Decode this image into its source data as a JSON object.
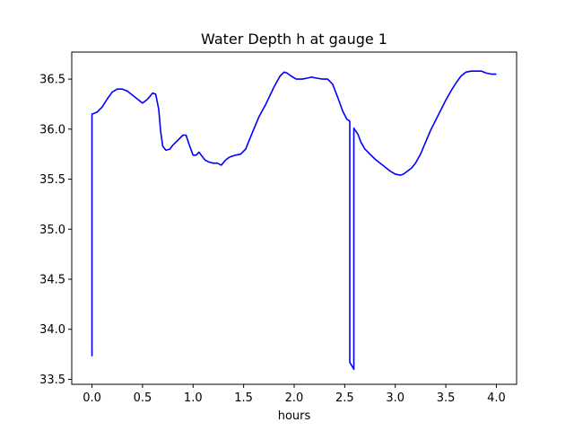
{
  "chart_data": {
    "type": "line",
    "title": "Water Depth h at gauge 1",
    "xlabel": "hours",
    "ylabel": "",
    "xlim": [
      -0.2,
      4.2
    ],
    "ylim": [
      33.45,
      36.77
    ],
    "xticks": [
      0.0,
      0.5,
      1.0,
      1.5,
      2.0,
      2.5,
      3.0,
      3.5,
      4.0
    ],
    "xtick_labels": [
      "0.0",
      "0.5",
      "1.0",
      "1.5",
      "2.0",
      "2.5",
      "3.0",
      "3.5",
      "4.0"
    ],
    "yticks": [
      33.5,
      34.0,
      34.5,
      35.0,
      35.5,
      36.0,
      36.5
    ],
    "ytick_labels": [
      "33.5",
      "34.0",
      "34.5",
      "35.0",
      "35.5",
      "36.0",
      "36.5"
    ],
    "grid": false,
    "series": [
      {
        "color": "#0000ff",
        "x": [
          0.0,
          0.0,
          0.05,
          0.1,
          0.15,
          0.2,
          0.25,
          0.3,
          0.35,
          0.4,
          0.45,
          0.5,
          0.55,
          0.6,
          0.63,
          0.66,
          0.68,
          0.7,
          0.73,
          0.77,
          0.8,
          0.85,
          0.9,
          0.93,
          0.96,
          1.0,
          1.03,
          1.06,
          1.08,
          1.12,
          1.16,
          1.2,
          1.24,
          1.28,
          1.32,
          1.36,
          1.42,
          1.47,
          1.52,
          1.58,
          1.65,
          1.72,
          1.8,
          1.86,
          1.9,
          1.93,
          1.97,
          2.02,
          2.08,
          2.13,
          2.17,
          2.22,
          2.28,
          2.33,
          2.38,
          2.43,
          2.48,
          2.52,
          2.55,
          2.55,
          2.59,
          2.59,
          2.63,
          2.66,
          2.7,
          2.75,
          2.8,
          2.85,
          2.9,
          2.95,
          3.0,
          3.05,
          3.08,
          3.12,
          3.16,
          3.2,
          3.25,
          3.3,
          3.35,
          3.4,
          3.45,
          3.5,
          3.55,
          3.6,
          3.65,
          3.7,
          3.75,
          3.8,
          3.85,
          3.9,
          3.95,
          4.0
        ],
        "y": [
          33.73,
          36.15,
          36.17,
          36.22,
          36.3,
          36.37,
          36.4,
          36.4,
          36.38,
          36.34,
          36.3,
          36.26,
          36.3,
          36.36,
          36.35,
          36.2,
          35.97,
          35.83,
          35.79,
          35.8,
          35.84,
          35.89,
          35.94,
          35.94,
          35.85,
          35.74,
          35.74,
          35.77,
          35.74,
          35.69,
          35.67,
          35.66,
          35.66,
          35.64,
          35.69,
          35.72,
          35.74,
          35.75,
          35.8,
          35.95,
          36.12,
          36.25,
          36.42,
          36.53,
          36.57,
          36.56,
          36.53,
          36.5,
          36.5,
          36.51,
          36.52,
          36.51,
          36.5,
          36.5,
          36.45,
          36.32,
          36.18,
          36.1,
          36.08,
          33.67,
          33.6,
          36.01,
          35.95,
          35.87,
          35.8,
          35.75,
          35.7,
          35.66,
          35.62,
          35.58,
          35.55,
          35.54,
          35.55,
          35.58,
          35.61,
          35.66,
          35.75,
          35.87,
          35.99,
          36.09,
          36.19,
          36.29,
          36.38,
          36.46,
          36.53,
          36.57,
          36.58,
          36.58,
          36.58,
          36.56,
          36.55,
          36.55
        ]
      }
    ]
  }
}
